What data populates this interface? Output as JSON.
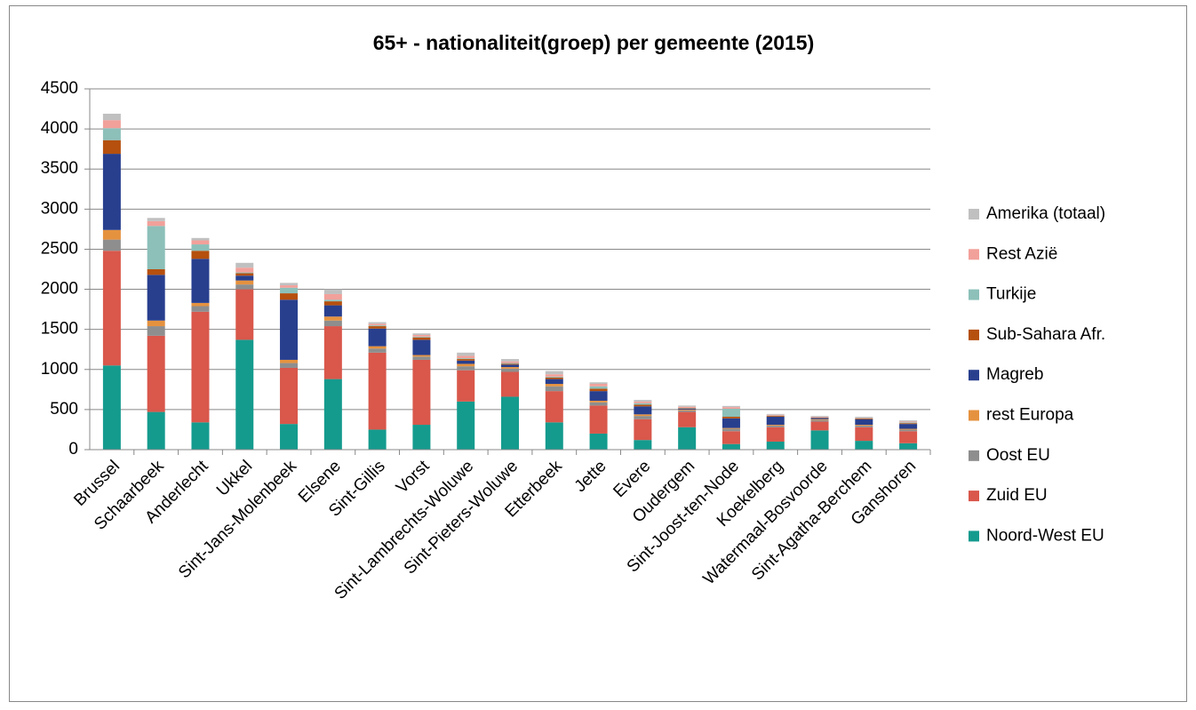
{
  "chart_data": {
    "type": "stacked_bar",
    "title": "65+ - nationaliteit(groep) per gemeente (2015)",
    "categories": [
      "Brussel",
      "Schaarbeek",
      "Anderlecht",
      "Ukkel",
      "Sint-Jans-Molenbeek",
      "Elsene",
      "Sint-Gillis",
      "Vorst",
      "Sint-Lambrechts-Woluwe",
      "Sint-Pieters-Woluwe",
      "Etterbeek",
      "Jette",
      "Evere",
      "Oudergem",
      "Sint-Joost-ten-Node",
      "Koekelberg",
      "Watermaal-Bosvoorde",
      "Sint-Agatha-Berchem",
      "Ganshoren"
    ],
    "series": [
      {
        "name": "Noord-West EU",
        "color": "#149b8e",
        "values": [
          1050,
          470,
          340,
          1370,
          320,
          880,
          250,
          310,
          600,
          660,
          340,
          200,
          120,
          280,
          70,
          100,
          240,
          110,
          80
        ]
      },
      {
        "name": "Zuid EU",
        "color": "#d9574b",
        "values": [
          1430,
          950,
          1380,
          630,
          700,
          660,
          960,
          810,
          390,
          310,
          390,
          350,
          260,
          190,
          160,
          180,
          110,
          170,
          150
        ]
      },
      {
        "name": "Oost EU",
        "color": "#8e8e8e",
        "values": [
          140,
          120,
          70,
          60,
          60,
          70,
          50,
          40,
          50,
          40,
          60,
          40,
          40,
          20,
          30,
          20,
          20,
          20,
          20
        ]
      },
      {
        "name": "rest Europa",
        "color": "#e5923f",
        "values": [
          120,
          70,
          40,
          50,
          40,
          50,
          30,
          20,
          30,
          20,
          30,
          20,
          20,
          10,
          10,
          10,
          10,
          10,
          10
        ]
      },
      {
        "name": "Magreb",
        "color": "#283f8e",
        "values": [
          950,
          570,
          550,
          60,
          750,
          140,
          220,
          190,
          40,
          30,
          60,
          120,
          100,
          10,
          120,
          100,
          15,
          70,
          60
        ]
      },
      {
        "name": "Sub-Sahara Afr.",
        "color": "#b5500e",
        "values": [
          170,
          70,
          100,
          30,
          80,
          50,
          30,
          30,
          20,
          10,
          20,
          30,
          20,
          5,
          20,
          10,
          5,
          10,
          10
        ]
      },
      {
        "name": "Turkije",
        "color": "#8cc0b9",
        "values": [
          150,
          540,
          80,
          10,
          70,
          20,
          10,
          10,
          10,
          10,
          10,
          30,
          20,
          5,
          100,
          5,
          3,
          5,
          10
        ]
      },
      {
        "name": "Rest Azië",
        "color": "#f2a09a",
        "values": [
          100,
          60,
          50,
          60,
          30,
          70,
          20,
          20,
          30,
          20,
          30,
          30,
          20,
          15,
          20,
          10,
          7,
          5,
          10
        ]
      },
      {
        "name": "Amerika (totaal)",
        "color": "#c0c0c0",
        "values": [
          80,
          40,
          30,
          60,
          30,
          60,
          20,
          20,
          40,
          30,
          40,
          20,
          20,
          15,
          15,
          10,
          10,
          10,
          15
        ]
      }
    ],
    "ylim": [
      0,
      4500
    ],
    "yticks": [
      0,
      500,
      1000,
      1500,
      2000,
      2500,
      3000,
      3500,
      4000,
      4500
    ],
    "grid": true,
    "legend": "right"
  }
}
